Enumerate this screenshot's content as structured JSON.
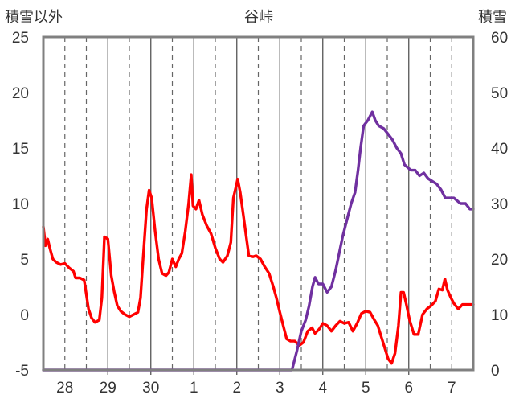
{
  "chart_data": {
    "type": "line",
    "title": "谷峠",
    "ylabel_left": "積雪以外",
    "ylabel_right": "積雪",
    "ylim_left": [
      -5,
      25
    ],
    "yticks_left": [
      -5,
      0,
      5,
      10,
      15,
      20,
      25
    ],
    "ylim_right": [
      0,
      60
    ],
    "yticks_right": [
      0,
      10,
      20,
      30,
      40,
      50,
      60
    ],
    "xlim": [
      27.5,
      7.5
    ],
    "x_day_positions": [
      28,
      29,
      30,
      31,
      32,
      33,
      34,
      35,
      36,
      37
    ],
    "x_tick_labels": [
      "28",
      "29",
      "30",
      "1",
      "2",
      "3",
      "4",
      "5",
      "6",
      "7"
    ],
    "x_half_gridlines": [
      28,
      28.5,
      29.5,
      30.5,
      31.5,
      32.5,
      33.5,
      34.5,
      35.5,
      36.5,
      37
    ],
    "x_solid_gridlines": [
      29,
      30,
      31,
      32,
      33,
      34,
      35,
      36
    ],
    "grid": true,
    "series": [
      {
        "axis": "left",
        "color": "#ff0000",
        "points": [
          [
            27.5,
            7.9
          ],
          [
            27.55,
            6.2
          ],
          [
            27.6,
            6.8
          ],
          [
            27.65,
            6.0
          ],
          [
            27.72,
            5.0
          ],
          [
            27.8,
            4.7
          ],
          [
            27.9,
            4.5
          ],
          [
            28.0,
            4.6
          ],
          [
            28.1,
            4.2
          ],
          [
            28.2,
            3.9
          ],
          [
            28.25,
            3.3
          ],
          [
            28.35,
            3.3
          ],
          [
            28.45,
            3.1
          ],
          [
            28.55,
            0.5
          ],
          [
            28.62,
            -0.3
          ],
          [
            28.7,
            -0.7
          ],
          [
            28.8,
            -0.5
          ],
          [
            28.86,
            1.5
          ],
          [
            28.92,
            7.0
          ],
          [
            29.0,
            6.8
          ],
          [
            29.08,
            3.5
          ],
          [
            29.15,
            2.0
          ],
          [
            29.22,
            0.8
          ],
          [
            29.3,
            0.3
          ],
          [
            29.4,
            0.0
          ],
          [
            29.5,
            -0.2
          ],
          [
            29.6,
            0.0
          ],
          [
            29.7,
            0.2
          ],
          [
            29.76,
            1.5
          ],
          [
            29.82,
            5.0
          ],
          [
            29.9,
            9.5
          ],
          [
            29.96,
            11.2
          ],
          [
            30.02,
            10.5
          ],
          [
            30.1,
            7.5
          ],
          [
            30.18,
            5.0
          ],
          [
            30.26,
            3.7
          ],
          [
            30.35,
            3.5
          ],
          [
            30.42,
            3.8
          ],
          [
            30.5,
            5.0
          ],
          [
            30.58,
            4.3
          ],
          [
            30.65,
            5.0
          ],
          [
            30.72,
            5.5
          ],
          [
            30.8,
            7.5
          ],
          [
            30.88,
            10.0
          ],
          [
            30.94,
            12.6
          ],
          [
            30.98,
            9.8
          ],
          [
            31.05,
            9.5
          ],
          [
            31.12,
            10.3
          ],
          [
            31.2,
            9.0
          ],
          [
            31.3,
            8.0
          ],
          [
            31.4,
            7.3
          ],
          [
            31.5,
            6.0
          ],
          [
            31.6,
            5.0
          ],
          [
            31.68,
            4.7
          ],
          [
            31.78,
            5.3
          ],
          [
            31.86,
            6.5
          ],
          [
            31.92,
            10.5
          ],
          [
            31.98,
            11.5
          ],
          [
            32.02,
            12.2
          ],
          [
            32.08,
            11.0
          ],
          [
            32.15,
            9.0
          ],
          [
            32.22,
            7.0
          ],
          [
            32.28,
            5.3
          ],
          [
            32.38,
            5.2
          ],
          [
            32.45,
            5.3
          ],
          [
            32.55,
            5.0
          ],
          [
            32.65,
            4.3
          ],
          [
            32.75,
            3.7
          ],
          [
            32.85,
            2.5
          ],
          [
            32.92,
            1.5
          ],
          [
            33.0,
            0.2
          ],
          [
            33.08,
            -1.0
          ],
          [
            33.16,
            -2.2
          ],
          [
            33.25,
            -2.4
          ],
          [
            33.35,
            -2.4
          ],
          [
            33.45,
            -2.8
          ],
          [
            33.55,
            -2.5
          ],
          [
            33.65,
            -1.5
          ],
          [
            33.75,
            -1.2
          ],
          [
            33.82,
            -1.7
          ],
          [
            33.92,
            -1.3
          ],
          [
            34.0,
            -0.8
          ],
          [
            34.1,
            -1.0
          ],
          [
            34.2,
            -1.5
          ],
          [
            34.3,
            -1.0
          ],
          [
            34.4,
            -0.6
          ],
          [
            34.5,
            -0.8
          ],
          [
            34.6,
            -0.7
          ],
          [
            34.7,
            -1.5
          ],
          [
            34.8,
            -0.8
          ],
          [
            34.9,
            0.1
          ],
          [
            35.0,
            0.3
          ],
          [
            35.1,
            0.2
          ],
          [
            35.2,
            -0.5
          ],
          [
            35.28,
            -1.0
          ],
          [
            35.36,
            -2.0
          ],
          [
            35.44,
            -3.0
          ],
          [
            35.52,
            -4.0
          ],
          [
            35.6,
            -4.4
          ],
          [
            35.68,
            -3.5
          ],
          [
            35.76,
            -1.0
          ],
          [
            35.82,
            2.0
          ],
          [
            35.88,
            2.0
          ],
          [
            35.94,
            1.0
          ],
          [
            36.02,
            -0.5
          ],
          [
            36.12,
            -1.8
          ],
          [
            36.22,
            -1.8
          ],
          [
            36.32,
            0.0
          ],
          [
            36.42,
            0.5
          ],
          [
            36.52,
            0.8
          ],
          [
            36.62,
            1.2
          ],
          [
            36.7,
            2.3
          ],
          [
            36.78,
            2.2
          ],
          [
            36.84,
            3.2
          ],
          [
            36.9,
            2.2
          ],
          [
            36.98,
            1.5
          ],
          [
            37.05,
            1.0
          ],
          [
            37.15,
            0.5
          ],
          [
            37.25,
            0.9
          ],
          [
            37.5,
            0.9
          ]
        ]
      },
      {
        "axis": "right",
        "color": "#7030a0",
        "points": [
          [
            27.5,
            0
          ],
          [
            33.28,
            0
          ],
          [
            33.3,
            0.5
          ],
          [
            33.4,
            3.5
          ],
          [
            33.5,
            7.0
          ],
          [
            33.6,
            9.0
          ],
          [
            33.68,
            11.5
          ],
          [
            33.76,
            15.0
          ],
          [
            33.82,
            16.7
          ],
          [
            33.9,
            15.5
          ],
          [
            34.0,
            15.5
          ],
          [
            34.1,
            14.0
          ],
          [
            34.2,
            15.0
          ],
          [
            34.3,
            18.0
          ],
          [
            34.38,
            21.0
          ],
          [
            34.46,
            24.0
          ],
          [
            34.56,
            27.0
          ],
          [
            34.66,
            30.0
          ],
          [
            34.75,
            32.0
          ],
          [
            34.82,
            36.0
          ],
          [
            34.88,
            40.0
          ],
          [
            34.95,
            44.0
          ],
          [
            35.05,
            45.0
          ],
          [
            35.15,
            46.5
          ],
          [
            35.22,
            45.0
          ],
          [
            35.3,
            44.0
          ],
          [
            35.42,
            43.5
          ],
          [
            35.52,
            42.5
          ],
          [
            35.62,
            41.5
          ],
          [
            35.72,
            40.0
          ],
          [
            35.82,
            39.0
          ],
          [
            35.9,
            37.0
          ],
          [
            36.05,
            36.0
          ],
          [
            36.15,
            36.0
          ],
          [
            36.25,
            35.0
          ],
          [
            36.35,
            35.5
          ],
          [
            36.45,
            34.5
          ],
          [
            36.55,
            34.0
          ],
          [
            36.65,
            33.5
          ],
          [
            36.75,
            32.5
          ],
          [
            36.85,
            31.0
          ],
          [
            37.05,
            31.0
          ],
          [
            37.2,
            30.0
          ],
          [
            37.32,
            30.0
          ],
          [
            37.42,
            29.0
          ],
          [
            37.5,
            29.0
          ]
        ]
      }
    ]
  }
}
